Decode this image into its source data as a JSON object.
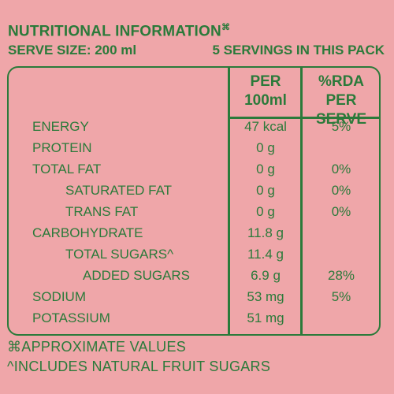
{
  "header": {
    "title": "NUTRITIONAL INFORMATION",
    "title_mark": "⌘",
    "serve_size": "SERVE SIZE: 200 ml",
    "servings": "5 SERVINGS IN THIS PACK"
  },
  "table": {
    "col_per_line1": "PER",
    "col_per_line2": "100ml",
    "col_rda_line1": "%RDA",
    "col_rda_line2": "PER SERVE",
    "rows": [
      {
        "label": "ENERGY",
        "per": "47 kcal",
        "rda": "5%"
      },
      {
        "label": "PROTEIN",
        "per": "0 g",
        "rda": ""
      },
      {
        "label": "TOTAL FAT",
        "per": "0 g",
        "rda": "0%"
      },
      {
        "label": "SATURATED FAT",
        "per": "0 g",
        "rda": "0%"
      },
      {
        "label": "TRANS FAT",
        "per": "0 g",
        "rda": "0%"
      },
      {
        "label": "CARBOHYDRATE",
        "per": "11.8 g",
        "rda": ""
      },
      {
        "label": "TOTAL SUGARS^",
        "per": "11.4 g",
        "rda": ""
      },
      {
        "label": "ADDED SUGARS",
        "per": "6.9 g",
        "rda": "28%"
      },
      {
        "label": "SODIUM",
        "per": "53 mg",
        "rda": "5%"
      },
      {
        "label": "POTASSIUM",
        "per": "51 mg",
        "rda": ""
      }
    ]
  },
  "footer": {
    "note1": "⌘APPROXIMATE VALUES",
    "note2": "^INCLUDES NATURAL FRUIT SUGARS"
  },
  "colors": {
    "background": "#efa6a9",
    "text": "#2b7a3a"
  }
}
